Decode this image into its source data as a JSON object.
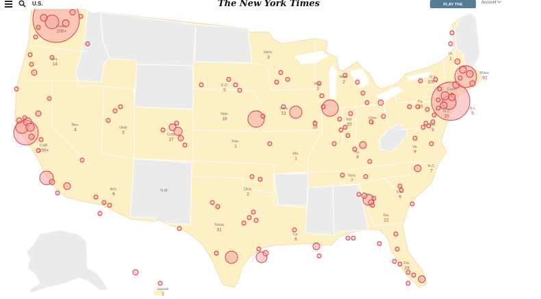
{
  "header": {
    "section": "U.S.",
    "masthead": "The New York Times",
    "crossword_button": "PLAY THE CROSSWORD",
    "account": "Account",
    "icons": [
      "menu-icon",
      "search-icon",
      "chevron-down-icon"
    ]
  },
  "colors": {
    "state_fill": "#fdf0c4",
    "no_case_fill": "#ebebeb",
    "border": "#ffffff",
    "bubble_fill": "#f7a7a7",
    "bubble_stroke": "#d6303a",
    "label": "#777777",
    "count": "#c0392b",
    "ocean": "#ffffff"
  },
  "states": [
    {
      "abbr": "Ore.",
      "count": "14"
    },
    {
      "abbr": "Calif.",
      "count": "100+"
    },
    {
      "abbr": "Nev.",
      "count": "4"
    },
    {
      "abbr": "Utah",
      "count": "3"
    },
    {
      "abbr": "Ariz.",
      "count": "6"
    },
    {
      "abbr": "Colo.",
      "count": "17"
    },
    {
      "abbr": "N.M.",
      "count": ""
    },
    {
      "abbr": "Texas",
      "count": "31"
    },
    {
      "abbr": "Okla.",
      "count": "2"
    },
    {
      "abbr": "Kan.",
      "count": "1"
    },
    {
      "abbr": "Neb.",
      "count": "18"
    },
    {
      "abbr": "S.D.",
      "count": "5"
    },
    {
      "abbr": "Minn.",
      "count": "3"
    },
    {
      "abbr": "Iowa",
      "count": "13"
    },
    {
      "abbr": "Mo.",
      "count": "1"
    },
    {
      "abbr": "La.",
      "count": "6"
    },
    {
      "abbr": "Wis.",
      "count": "3"
    },
    {
      "abbr": "Ill.",
      "count": "19"
    },
    {
      "abbr": "Mich.",
      "count": "2"
    },
    {
      "abbr": "Ind.",
      "count": "10"
    },
    {
      "abbr": "Ohio",
      "count": "3"
    },
    {
      "abbr": "Ky.",
      "count": "8"
    },
    {
      "abbr": "Tenn.",
      "count": "7"
    },
    {
      "abbr": "Ga.",
      "count": "22"
    },
    {
      "abbr": "Fla.",
      "count": "23"
    },
    {
      "abbr": "S.C.",
      "count": "9"
    },
    {
      "abbr": "N.C.",
      "count": "7"
    },
    {
      "abbr": "Va.",
      "count": "9"
    },
    {
      "abbr": "Md.",
      "count": "9"
    },
    {
      "abbr": "Pa.",
      "count": "15"
    },
    {
      "abbr": "N.Y.",
      "count": "100+"
    },
    {
      "abbr": "Conn.",
      "count": "8"
    },
    {
      "abbr": "N.J.",
      "count": "15"
    },
    {
      "abbr": "R.I.",
      "count": "5"
    },
    {
      "abbr": "Mass.",
      "count": "92"
    },
    {
      "abbr": "Vt.",
      "count": "1"
    },
    {
      "abbr": "Wash.",
      "count": "200+"
    },
    {
      "abbr": "Hawaii",
      "count": "2"
    }
  ]
}
